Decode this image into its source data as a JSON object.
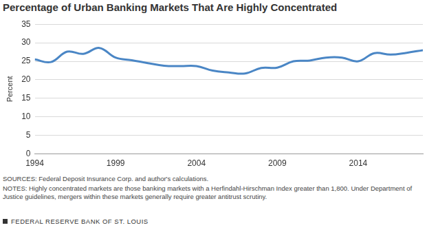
{
  "chart_data": {
    "type": "line",
    "title": "Percentage of Urban Banking Markets That Are Highly Concentrated",
    "y_label": "Percent",
    "x": [
      1994,
      1995,
      1996,
      1997,
      1998,
      1999,
      2000,
      2001,
      2002,
      2003,
      2004,
      2005,
      2006,
      2007,
      2008,
      2009,
      2010,
      2011,
      2012,
      2013,
      2014,
      2015,
      2016,
      2017,
      2018
    ],
    "values": [
      25.5,
      24.8,
      27.6,
      27.0,
      28.6,
      26.0,
      25.3,
      24.5,
      23.8,
      23.7,
      23.7,
      22.5,
      22.0,
      21.7,
      23.2,
      23.3,
      25.0,
      25.2,
      26.0,
      26.0,
      25.0,
      27.2,
      26.8,
      27.3,
      28.0
    ],
    "color": "#4a86c5",
    "xlim": [
      1994,
      2018
    ],
    "ylim": [
      0,
      35
    ],
    "xticks": [
      1994,
      1999,
      2004,
      2009,
      2014
    ],
    "yticks": [
      0,
      5,
      10,
      15,
      20,
      25,
      30,
      35
    ],
    "grid": true,
    "source": "SOURCES: Federal Deposit Insurance Corp. and author's calculations.",
    "note": "NOTES: Highly concentrated markets are those banking markets with a Herfindahl-Hirschman Index greater than 1,800. Under Department of Justice guidelines, mergers within these markets generally require greater antitrust scrutiny.",
    "footer": "FEDERAL RESERVE BANK OF ST. LOUIS"
  }
}
